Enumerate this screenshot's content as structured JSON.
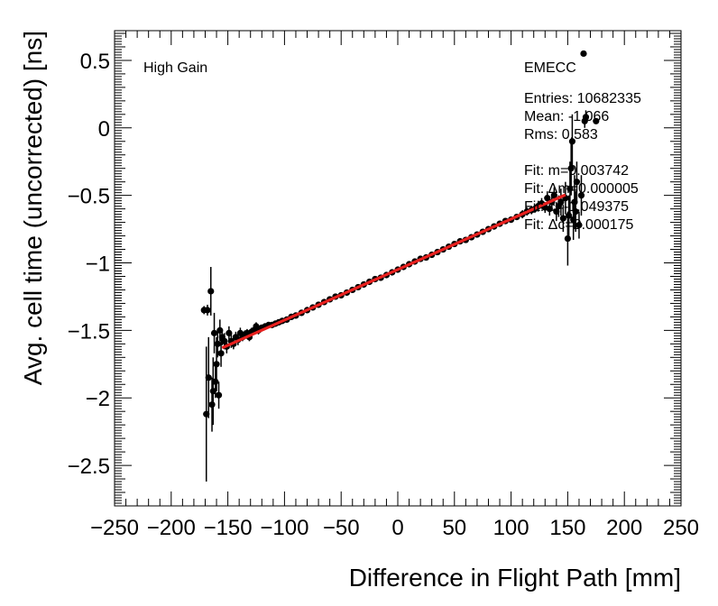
{
  "chart_data": {
    "type": "scatter",
    "title": "",
    "xlabel": "Difference in Flight Path [mm]",
    "ylabel": "Avg. cell time (uncorrected) [ns]",
    "xlim": [
      -250,
      250
    ],
    "ylim": [
      -2.8,
      0.72
    ],
    "grid": false,
    "x_ticks": [
      -250,
      -200,
      -150,
      -100,
      -50,
      0,
      50,
      100,
      150,
      200,
      250
    ],
    "x_tick_labels": [
      "−250",
      "−200",
      "−150",
      "−100",
      "−50",
      "0",
      "50",
      "100",
      "150",
      "200",
      "250"
    ],
    "y_ticks": [
      0.5,
      0,
      -0.5,
      -1,
      -1.5,
      -2,
      -2.5
    ],
    "y_tick_labels": [
      "0.5",
      "0",
      "−0.5",
      "−1",
      "−1.5",
      "−2",
      "−2.5"
    ],
    "annotations": {
      "gain": "High Gain",
      "region": "EMECC"
    },
    "stats": [
      "Entries: 10682335",
      "Mean: -1.066",
      "Rms: 0.583",
      "",
      "Fit: m=0.003742",
      "Fit: Δm=0.000005",
      "Fit: c=-1.049375",
      "Fit: Δc=0.000175"
    ],
    "fit": {
      "m": 0.003742,
      "c": -1.049375,
      "x_range": [
        -155,
        148
      ],
      "color": "#e8201e"
    },
    "points": [
      [
        -171,
        -1.35,
        0.03
      ],
      [
        -168,
        -1.35,
        0.04
      ],
      [
        -169,
        -2.12,
        0.5
      ],
      [
        -167,
        -1.85,
        0.3
      ],
      [
        -165,
        -1.21,
        0.18
      ],
      [
        -164,
        -2.05,
        0.2
      ],
      [
        -163,
        -1.95,
        0.25
      ],
      [
        -162,
        -1.52,
        0.15
      ],
      [
        -161,
        -1.88,
        0.12
      ],
      [
        -160,
        -1.75,
        0.2
      ],
      [
        -159,
        -1.6,
        0.1
      ],
      [
        -158,
        -1.98,
        0.1
      ],
      [
        -157,
        -1.5,
        0.08
      ],
      [
        -156,
        -1.67,
        0.1
      ],
      [
        -155,
        -1.55,
        0.06
      ],
      [
        -153,
        -1.58,
        0.06
      ],
      [
        -151,
        -1.62,
        0.05
      ],
      [
        -149,
        -1.52,
        0.05
      ],
      [
        -147,
        -1.58,
        0.05
      ],
      [
        -145,
        -1.6,
        0.04
      ],
      [
        -143,
        -1.55,
        0.04
      ],
      [
        -141,
        -1.57,
        0.04
      ],
      [
        -139,
        -1.52,
        0.04
      ],
      [
        -137,
        -1.55,
        0.03
      ],
      [
        -135,
        -1.53,
        0.03
      ],
      [
        -133,
        -1.52,
        0.03
      ],
      [
        -131,
        -1.55,
        0.03
      ],
      [
        -129,
        -1.51,
        0.03
      ],
      [
        -127,
        -1.5,
        0.03
      ],
      [
        -125,
        -1.47,
        0.03
      ],
      [
        -123,
        -1.5,
        0.03
      ],
      [
        -120,
        -1.48,
        0.02
      ],
      [
        -117,
        -1.47,
        0.02
      ],
      [
        -114,
        -1.46,
        0.02
      ],
      [
        -111,
        -1.46,
        0.02
      ],
      [
        -108,
        -1.45,
        0.02
      ],
      [
        -105,
        -1.44,
        0.02
      ],
      [
        -102,
        -1.43,
        0.02
      ],
      [
        -98,
        -1.42,
        0.02
      ],
      [
        -94,
        -1.4,
        0.02
      ],
      [
        -90,
        -1.39,
        0.02
      ],
      [
        -85,
        -1.37,
        0.02
      ],
      [
        -80,
        -1.35,
        0.02
      ],
      [
        -75,
        -1.33,
        0.02
      ],
      [
        -70,
        -1.31,
        0.02
      ],
      [
        -65,
        -1.29,
        0.02
      ],
      [
        -60,
        -1.27,
        0.02
      ],
      [
        -55,
        -1.25,
        0.02
      ],
      [
        -50,
        -1.24,
        0.02
      ],
      [
        -45,
        -1.22,
        0.02
      ],
      [
        -40,
        -1.2,
        0.02
      ],
      [
        -35,
        -1.18,
        0.02
      ],
      [
        -30,
        -1.16,
        0.02
      ],
      [
        -25,
        -1.14,
        0.02
      ],
      [
        -20,
        -1.12,
        0.02
      ],
      [
        -15,
        -1.11,
        0.02
      ],
      [
        -10,
        -1.09,
        0.02
      ],
      [
        -5,
        -1.07,
        0.02
      ],
      [
        0,
        -1.05,
        0.02
      ],
      [
        5,
        -1.03,
        0.02
      ],
      [
        10,
        -1.01,
        0.02
      ],
      [
        15,
        -0.99,
        0.02
      ],
      [
        20,
        -0.97,
        0.02
      ],
      [
        25,
        -0.96,
        0.02
      ],
      [
        30,
        -0.94,
        0.02
      ],
      [
        35,
        -0.92,
        0.02
      ],
      [
        40,
        -0.9,
        0.02
      ],
      [
        45,
        -0.88,
        0.02
      ],
      [
        50,
        -0.86,
        0.02
      ],
      [
        55,
        -0.84,
        0.02
      ],
      [
        60,
        -0.83,
        0.02
      ],
      [
        65,
        -0.81,
        0.02
      ],
      [
        70,
        -0.79,
        0.02
      ],
      [
        75,
        -0.77,
        0.02
      ],
      [
        80,
        -0.75,
        0.02
      ],
      [
        85,
        -0.73,
        0.02
      ],
      [
        90,
        -0.71,
        0.02
      ],
      [
        95,
        -0.69,
        0.02
      ],
      [
        100,
        -0.68,
        0.02
      ],
      [
        105,
        -0.66,
        0.02
      ],
      [
        110,
        -0.64,
        0.03
      ],
      [
        114,
        -0.62,
        0.03
      ],
      [
        118,
        -0.61,
        0.03
      ],
      [
        121,
        -0.6,
        0.03
      ],
      [
        124,
        -0.58,
        0.04
      ],
      [
        127,
        -0.56,
        0.04
      ],
      [
        130,
        -0.59,
        0.04
      ],
      [
        132,
        -0.52,
        0.05
      ],
      [
        134,
        -0.6,
        0.05
      ],
      [
        136,
        -0.55,
        0.06
      ],
      [
        138,
        -0.5,
        0.06
      ],
      [
        140,
        -0.62,
        0.07
      ],
      [
        142,
        -0.58,
        0.08
      ],
      [
        144,
        -0.55,
        0.1
      ],
      [
        146,
        -0.67,
        0.1
      ],
      [
        148,
        -0.52,
        0.12
      ],
      [
        150,
        -0.82,
        0.2
      ],
      [
        151,
        -0.65,
        0.15
      ],
      [
        152,
        -0.45,
        0.2
      ],
      [
        153,
        -0.3,
        0.2
      ],
      [
        154,
        -0.1,
        0.2
      ],
      [
        155,
        -0.68,
        0.15
      ],
      [
        156,
        -0.55,
        0.2
      ],
      [
        157,
        -0.62,
        0.15
      ],
      [
        158,
        -0.4,
        0.15
      ],
      [
        160,
        -0.72,
        0.1
      ],
      [
        162,
        -0.5,
        0.15
      ],
      [
        164,
        0.55,
        0.02
      ],
      [
        165,
        0.05,
        0.05
      ],
      [
        166,
        0.08,
        0.05
      ],
      [
        175,
        0.05,
        0.02
      ]
    ]
  }
}
